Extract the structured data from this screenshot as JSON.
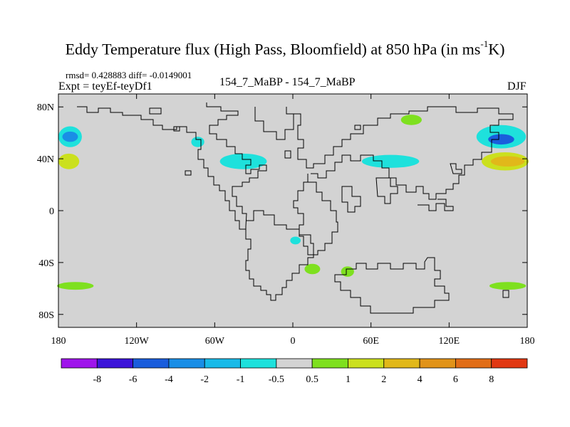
{
  "title": {
    "main": "Eddy Temperature flux (High Pass, Bloomfield) at 850 hPa (in ms",
    "sup": "-1",
    "end": "K)"
  },
  "rmsd_line": "rmsd= 0.428883 diff= -0.0149001",
  "expt_line": "Expt = teyEf-teyDf1",
  "comparison_label": "154_7_MaBP - 154_7_MaBP",
  "season": "DJF",
  "chart_data": {
    "type": "heatmap",
    "title": "Eddy Temperature flux (High Pass, Bloomfield) at 850 hPa (in ms-1K)",
    "x_range": [
      -180,
      180
    ],
    "y_range": [
      -90,
      90
    ],
    "x_ticks": [
      {
        "value": -180,
        "label": "180"
      },
      {
        "value": -120,
        "label": "120W"
      },
      {
        "value": -60,
        "label": "60W"
      },
      {
        "value": 0,
        "label": "0"
      },
      {
        "value": 60,
        "label": "60E"
      },
      {
        "value": 120,
        "label": "120E"
      },
      {
        "value": 180,
        "label": "180"
      }
    ],
    "y_ticks": [
      {
        "value": 80,
        "label": "80N"
      },
      {
        "value": 40,
        "label": "40N"
      },
      {
        "value": 0,
        "label": "0"
      },
      {
        "value": -40,
        "label": "40S"
      },
      {
        "value": -80,
        "label": "80S"
      }
    ],
    "background_color": "#d3d3d3",
    "colorbar": {
      "colors": [
        "#9f14eb",
        "#3c14d9",
        "#1a5ddc",
        "#1a8ee6",
        "#19bae8",
        "#1ee1dc",
        "#d3d3d3",
        "#7ee01f",
        "#cbe01e",
        "#e1b81a",
        "#e19319",
        "#e16d17",
        "#e13712"
      ],
      "labels": [
        "-8",
        "-6",
        "-4",
        "-2",
        "-1",
        "-0.5",
        "0.5",
        "1",
        "2",
        "4",
        "6",
        "8"
      ]
    },
    "regions": [
      {
        "name": "north-pacific-west-negative",
        "level": -1,
        "color": "#1ee1dc",
        "center": [
          -171,
          57
        ],
        "radius": [
          9,
          8
        ]
      },
      {
        "name": "north-pacific-west-core",
        "level": -2,
        "color": "#1a8ee6",
        "center": [
          -171,
          57
        ],
        "radius": [
          6,
          4
        ]
      },
      {
        "name": "north-pacific-west-positive",
        "level": 2,
        "color": "#e1b81a",
        "center": [
          -175,
          38
        ],
        "radius": [
          5,
          4
        ]
      },
      {
        "name": "north-pacific-west-positive-edge",
        "level": 1,
        "color": "#cbe01e",
        "center": [
          -172,
          38
        ],
        "radius": [
          8,
          6
        ]
      },
      {
        "name": "north-pacific-east-negative",
        "level": -1,
        "color": "#1ee1dc",
        "center": [
          160,
          57
        ],
        "radius": [
          19,
          9
        ]
      },
      {
        "name": "north-pacific-east-core",
        "level": -4,
        "color": "#1a5ddc",
        "center": [
          160,
          55
        ],
        "radius": [
          10,
          4
        ]
      },
      {
        "name": "north-pacific-east-positive-edge",
        "level": 1,
        "color": "#cbe01e",
        "center": [
          163,
          38
        ],
        "radius": [
          18,
          7
        ]
      },
      {
        "name": "north-pacific-east-positive",
        "level": 4,
        "color": "#e1b81a",
        "center": [
          165,
          38
        ],
        "radius": [
          13,
          4
        ]
      },
      {
        "name": "north-atlantic-negative",
        "level": -1,
        "color": "#1ee1dc",
        "center": [
          -38,
          38
        ],
        "radius": [
          18,
          6
        ]
      },
      {
        "name": "labrador-negative",
        "level": -1,
        "color": "#1ee1dc",
        "center": [
          -73,
          53
        ],
        "radius": [
          5,
          4
        ]
      },
      {
        "name": "asia-negative",
        "level": -1,
        "color": "#1ee1dc",
        "center": [
          75,
          38
        ],
        "radius": [
          22,
          5
        ]
      },
      {
        "name": "south-atlantic-negative",
        "level": -1,
        "color": "#1ee1dc",
        "center": [
          2,
          -23
        ],
        "radius": [
          4,
          3
        ]
      },
      {
        "name": "arctic-positive",
        "level": 1,
        "color": "#7ee01f",
        "center": [
          91,
          70
        ],
        "radius": [
          8,
          4
        ]
      },
      {
        "name": "africa-south-positive",
        "level": 1,
        "color": "#7ee01f",
        "center": [
          15,
          -45
        ],
        "radius": [
          6,
          4
        ]
      },
      {
        "name": "indian-ocean-positive",
        "level": 1,
        "color": "#7ee01f",
        "center": [
          42,
          -47
        ],
        "radius": [
          5,
          4
        ]
      },
      {
        "name": "southern-ocean-west-positive",
        "level": 1,
        "color": "#7ee01f",
        "center": [
          -167,
          -58
        ],
        "radius": [
          14,
          3
        ]
      },
      {
        "name": "southern-ocean-east-positive",
        "level": 1,
        "color": "#7ee01f",
        "center": [
          165,
          -58
        ],
        "radius": [
          14,
          3
        ]
      }
    ]
  }
}
